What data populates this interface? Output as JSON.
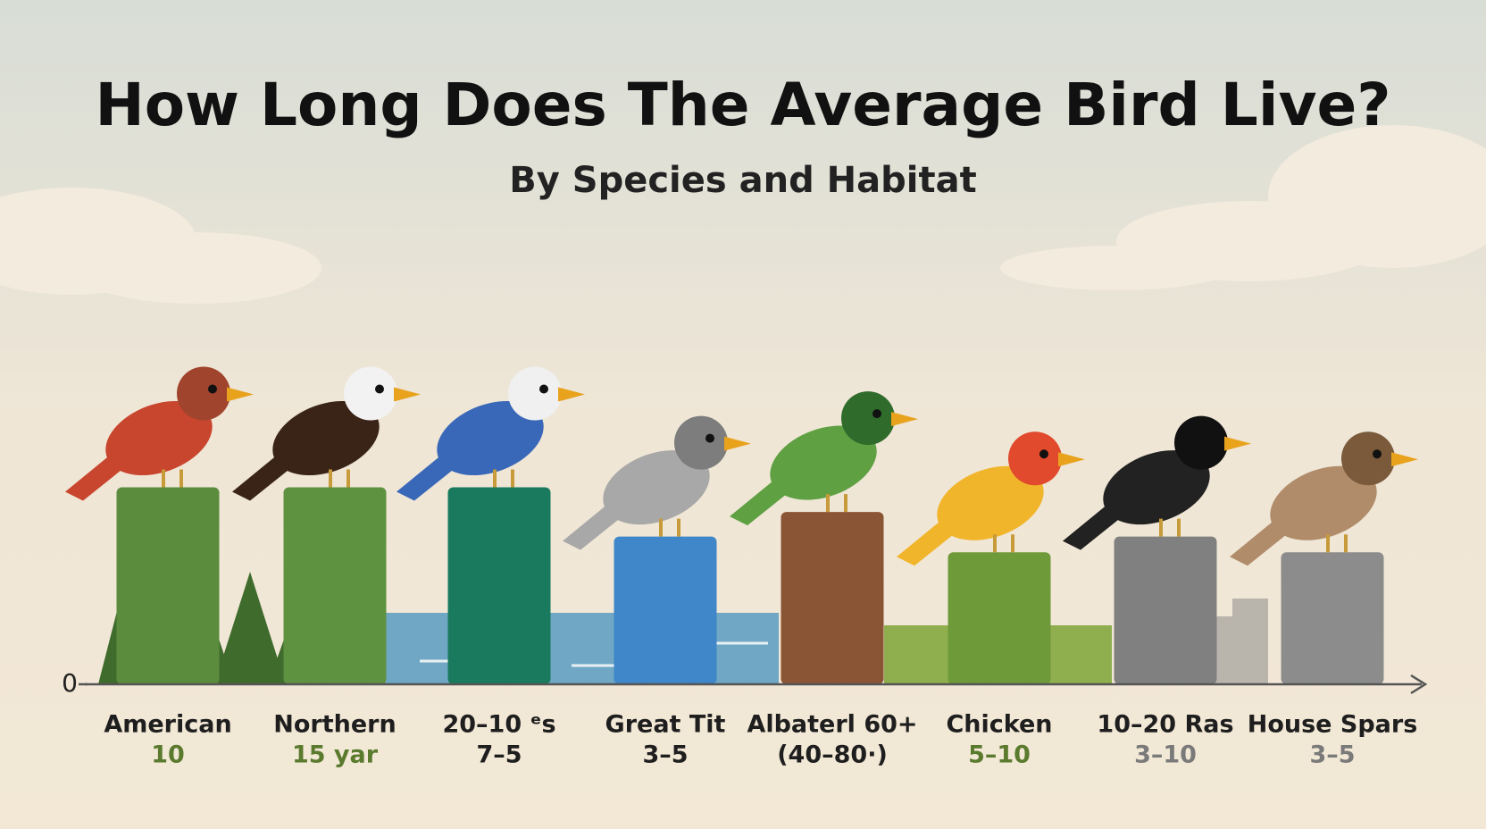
{
  "chart_data": {
    "type": "bar",
    "title": "How Long Does The Average Bird Live?",
    "subtitle": "By Species and Habitat",
    "categories": [
      "American",
      "Northern",
      "20–10 ᵉs",
      "Great Tit",
      "Albaterl 60+",
      "Chicken",
      "10–20 Ras",
      "House Spars"
    ],
    "sublabels": [
      "10",
      "15 yar",
      "7–5",
      "3–5",
      "(40–80·)",
      "5–10",
      "3–10",
      "3–5"
    ],
    "sublabel_colors": [
      "#5a7a2e",
      "#5a7a2e",
      "#1e1e1e",
      "#1e1e1e",
      "#1e1e1e",
      "#5a7a2e",
      "#7a7a7a",
      "#7a7a7a"
    ],
    "values": [
      10,
      10,
      10,
      7.5,
      8.75,
      6.7,
      7.5,
      6.7
    ],
    "colors": [
      "#5b8c3e",
      "#5e9140",
      "#1a7a5e",
      "#3f87c9",
      "#8a5535",
      "#6f9a3a",
      "#808080",
      "#8c8c8c"
    ],
    "ylim": [
      0,
      20
    ],
    "yticks": [
      0
    ],
    "grid": false
  }
}
